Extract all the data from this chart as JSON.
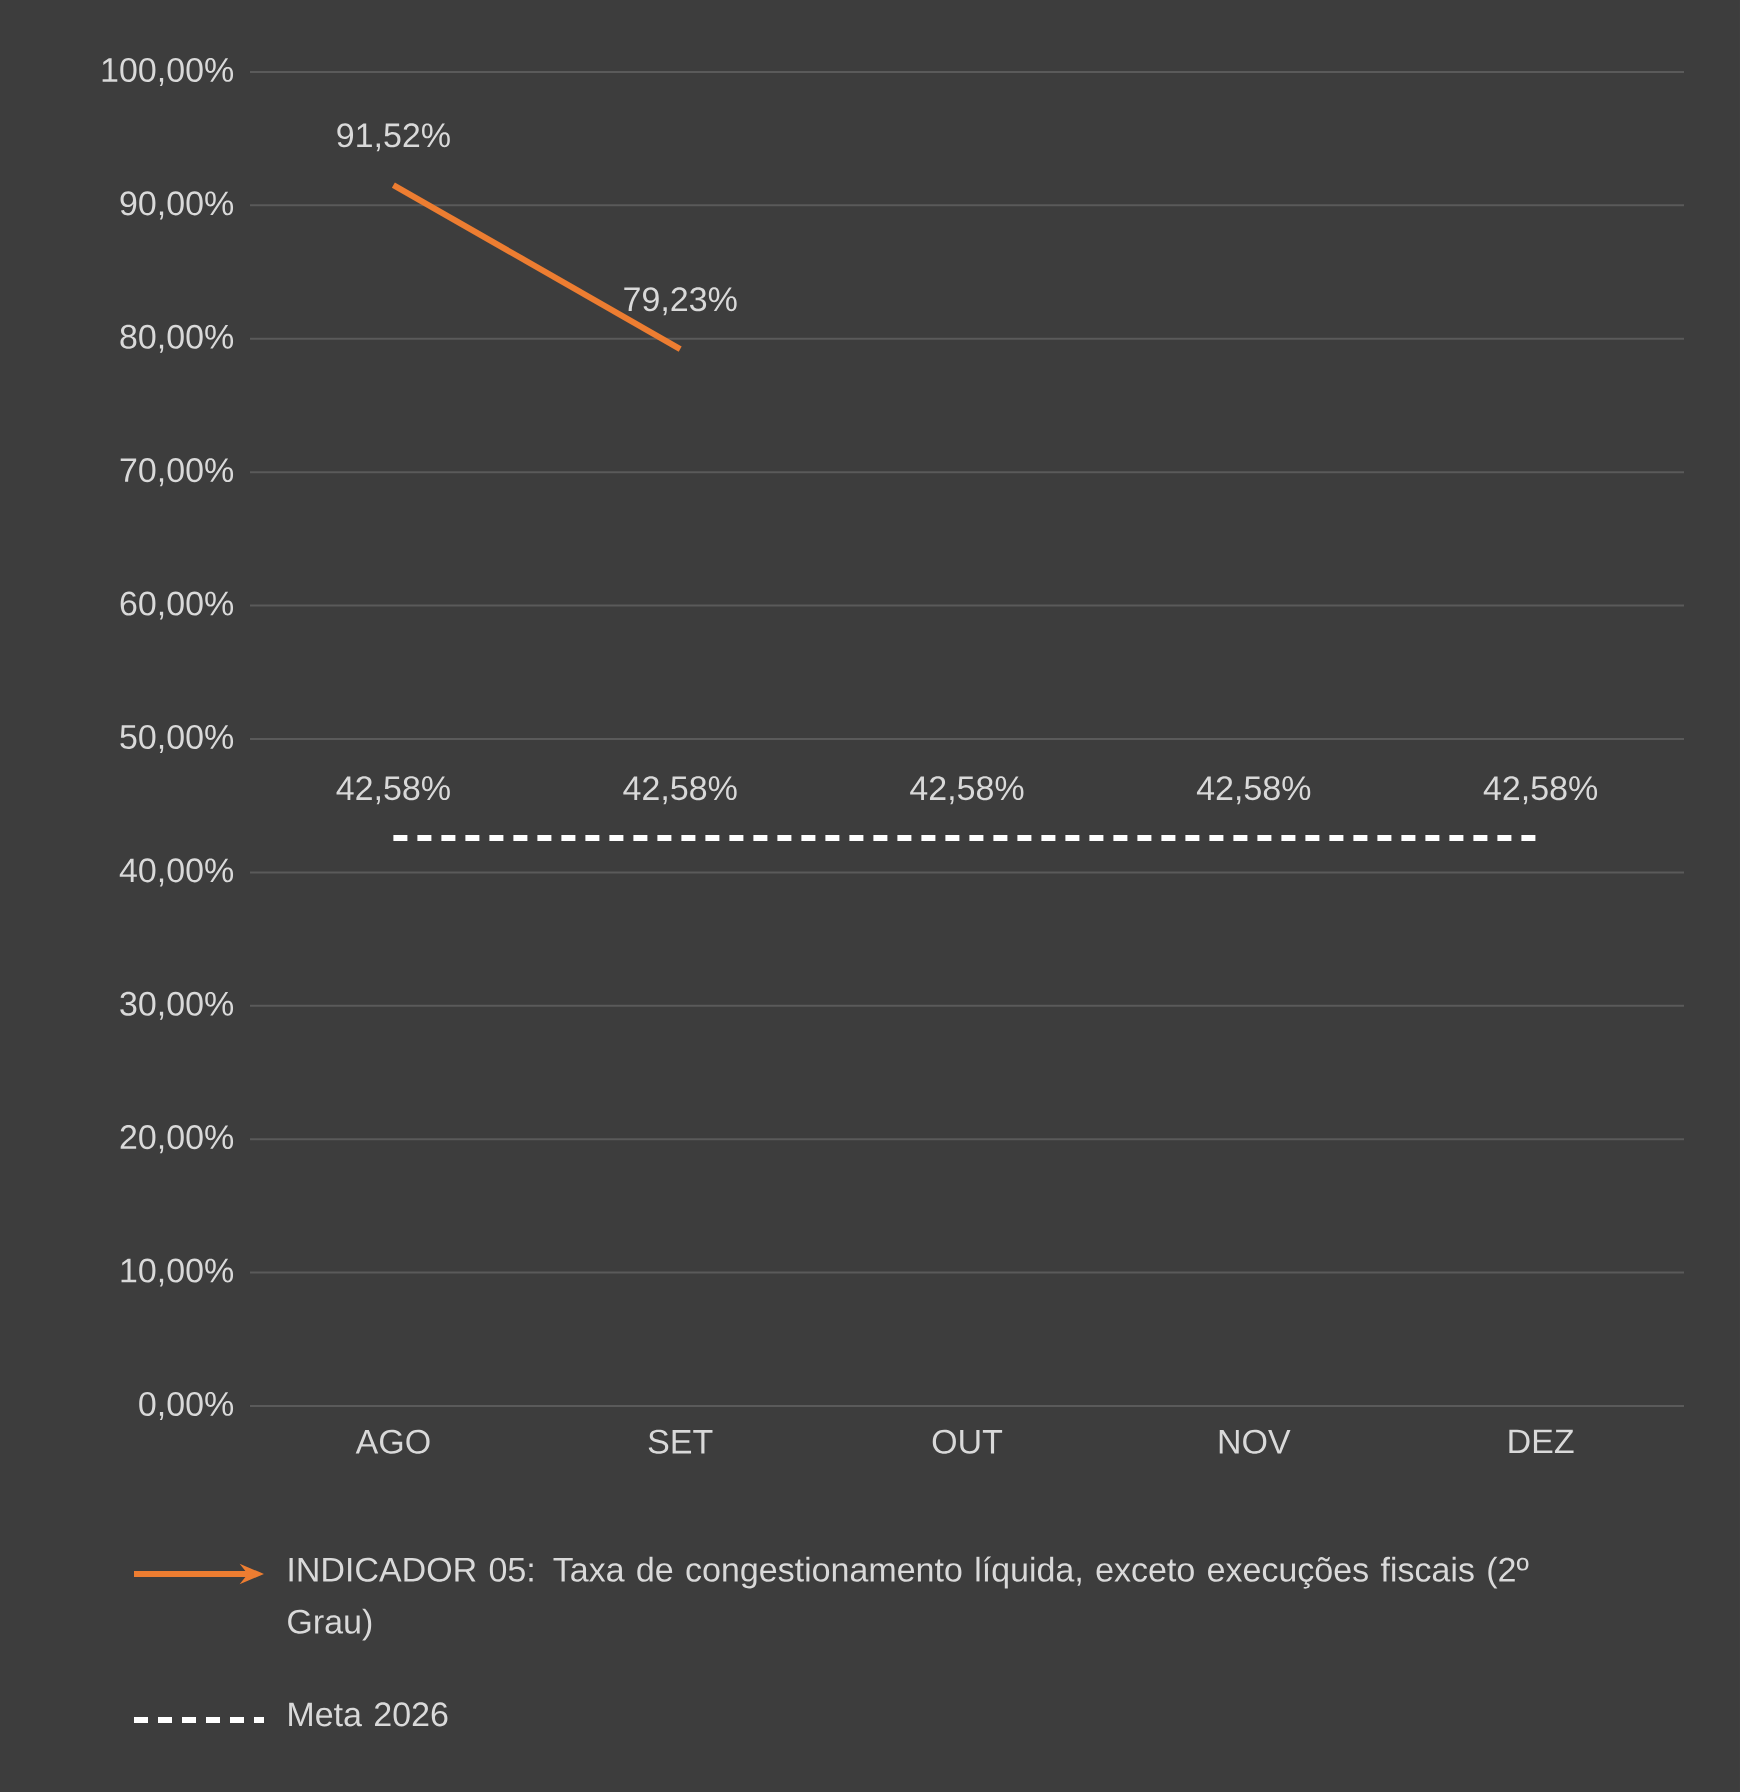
{
  "chart_data": {
    "type": "line",
    "categories": [
      "AGO",
      "SET",
      "OUT",
      "NOV",
      "DEZ"
    ],
    "series": [
      {
        "name": "INDICADOR 05: Taxa de congestionamento líquida, exceto execuções fiscais (2º Grau)",
        "color": "#ed7d31",
        "line_style": "solid",
        "values": [
          91.52,
          79.23,
          null,
          null,
          null
        ],
        "value_labels": [
          "91,52%",
          "79,23%",
          null,
          null,
          null
        ]
      },
      {
        "name": "Meta 2026",
        "color": "#ffffff",
        "line_style": "dashed",
        "values": [
          42.58,
          42.58,
          42.58,
          42.58,
          42.58
        ],
        "value_labels": [
          "42,58%",
          "42,58%",
          "42,58%",
          "42,58%",
          "42,58%"
        ]
      }
    ],
    "ylim": [
      0,
      100
    ],
    "yticks": [
      {
        "value": 0,
        "label": "0,00%"
      },
      {
        "value": 10,
        "label": "10,00%"
      },
      {
        "value": 20,
        "label": "20,00%"
      },
      {
        "value": 30,
        "label": "30,00%"
      },
      {
        "value": 40,
        "label": "40,00%"
      },
      {
        "value": 50,
        "label": "50,00%"
      },
      {
        "value": 60,
        "label": "60,00%"
      },
      {
        "value": 70,
        "label": "70,00%"
      },
      {
        "value": 80,
        "label": "80,00%"
      },
      {
        "value": 90,
        "label": "90,00%"
      },
      {
        "value": 100,
        "label": "100,00%"
      }
    ],
    "grid": "y",
    "legend": "bottom"
  }
}
